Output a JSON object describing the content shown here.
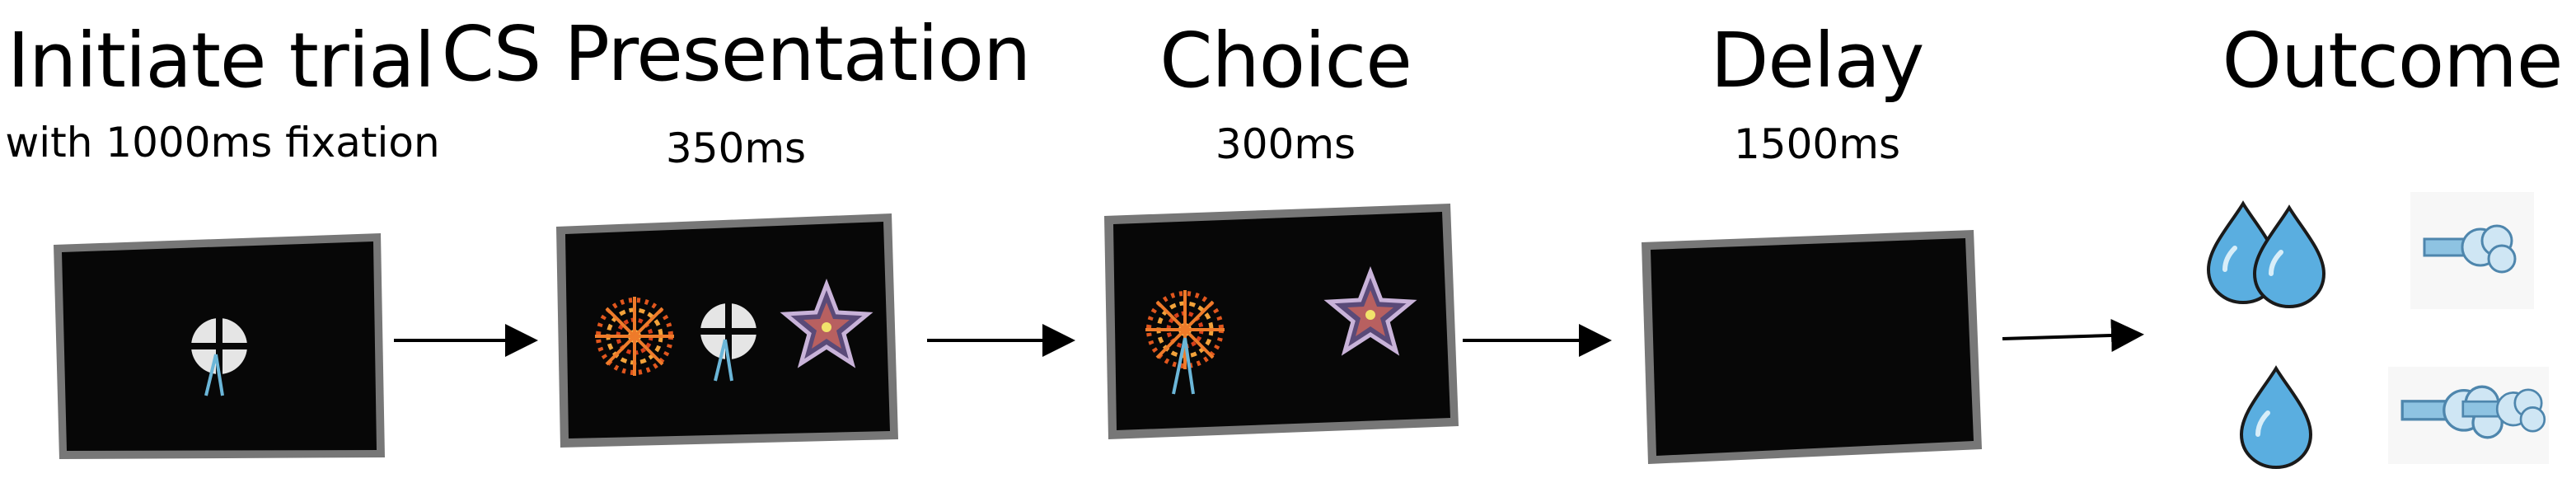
{
  "stages": [
    {
      "title": "Initiate trial",
      "subtitle": "with 1000ms fixation"
    },
    {
      "title": "CS Presentation",
      "subtitle": "350ms"
    },
    {
      "title": "Choice",
      "subtitle": "300ms"
    },
    {
      "title": "Delay",
      "subtitle": "1500ms"
    },
    {
      "title": "Outcome",
      "subtitle": ""
    }
  ],
  "colors": {
    "screen": "#070707",
    "bezel": "#777777",
    "drop": "#5aaee0",
    "air": "#8ec3e2"
  },
  "icons": [
    "fixation-target-icon",
    "kaleidoscope-cs-icon",
    "star-cs-icon",
    "water-drop-icon",
    "air-puff-icon",
    "arrow-icon"
  ]
}
